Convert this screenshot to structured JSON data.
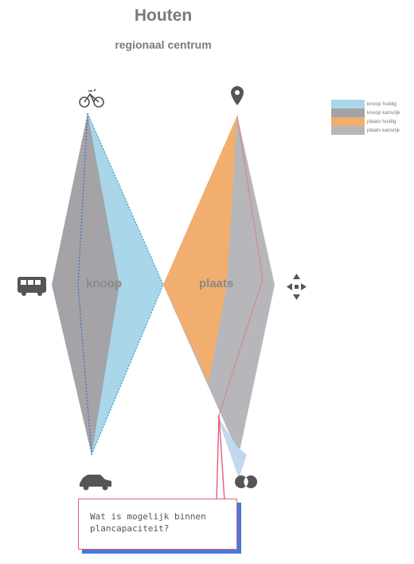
{
  "title": "Houten",
  "subtitle": "regionaal centrum",
  "left_label": "knoop",
  "right_label": "plaats",
  "legend": [
    {
      "label": "knoop huidig",
      "color": "#a9d6e8"
    },
    {
      "label": "knoop kansrijk",
      "color": "#a3a3a8"
    },
    {
      "label": "plaats huidig",
      "color": "#f2ae6e"
    },
    {
      "label": "plaats kansrijk",
      "color": "#b6b6bb"
    }
  ],
  "icons": {
    "top_left": "bicycle-icon",
    "top_right": "location-pin-icon",
    "left": "bus-icon",
    "right": "arrows-center-icon",
    "bottom_left": "car-icon",
    "bottom_right": "circles-icon"
  },
  "callout_lines": [
    "Wat is mogelijk binnen",
    "plancapaciteit?"
  ],
  "colors": {
    "knoop_huidig": "#a9d6e8",
    "knoop_kansrijk": "#a3a3a8",
    "plaats_huidig": "#f2ae6e",
    "plaats_kansrijk": "#b6b6bb",
    "title": "#7a7a7a"
  }
}
